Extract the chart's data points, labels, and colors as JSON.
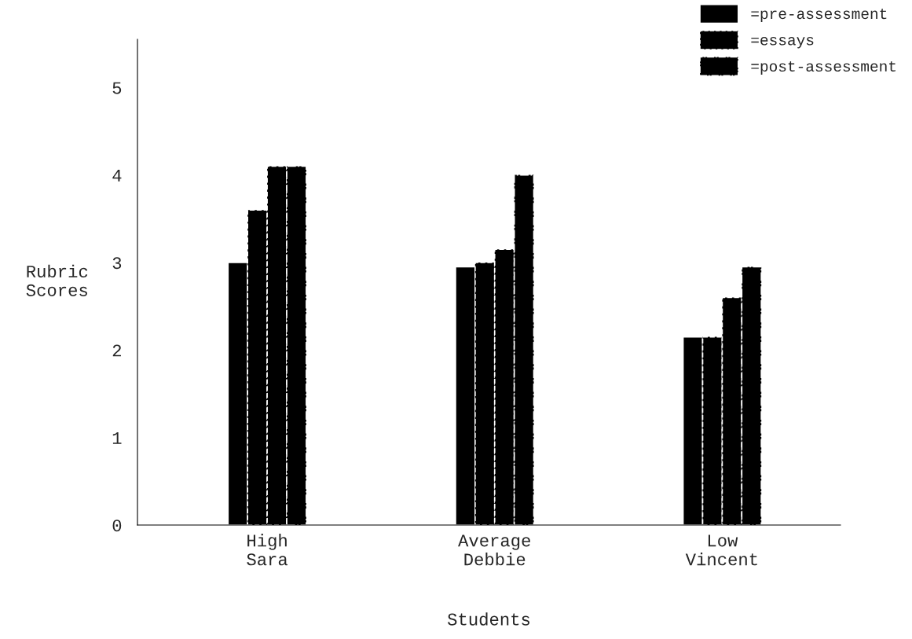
{
  "chart_data": {
    "type": "bar",
    "xlabel": "Students",
    "ylabel": "Rubric\nScores",
    "categories": [
      "High\nSara",
      "Average\nDebbie",
      "Low\nVincent"
    ],
    "series": [
      {
        "name": "=pre-assessment",
        "color": "#000000",
        "values": [
          3.0,
          2.95,
          2.15
        ]
      },
      {
        "name": "=essays",
        "color": "#000000",
        "values": [
          3.6,
          3.0,
          2.15
        ]
      },
      {
        "color": "#000000",
        "values": [
          4.1,
          3.15,
          2.6
        ]
      },
      {
        "name": "=post-assessment",
        "color": "#000000",
        "values": [
          4.1,
          4.0,
          2.95
        ]
      }
    ],
    "ylim": [
      0,
      5.55
    ],
    "yticks": [
      0,
      1,
      2,
      3,
      4,
      5
    ],
    "grid": false,
    "legend": "top right"
  }
}
